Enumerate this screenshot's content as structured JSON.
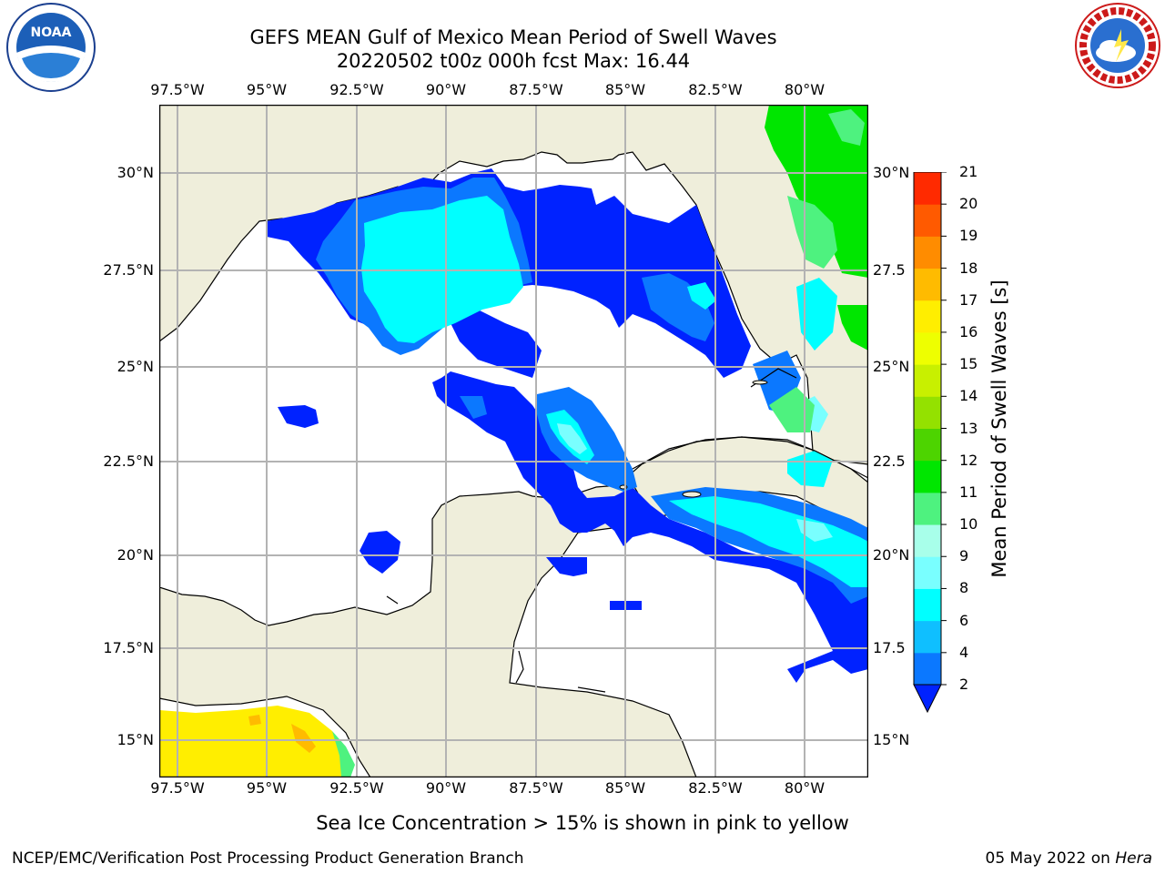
{
  "header": {
    "title_line1": "GEFS MEAN Gulf of Mexico Mean Period of Swell Waves",
    "title_line2": "20220502 t00z 000h fcst   Max: 16.44"
  },
  "logos": {
    "left": "noaa-logo",
    "right": "nws-logo"
  },
  "axes": {
    "lon_labels": [
      "97.5°W",
      "95°W",
      "92.5°W",
      "90°W",
      "87.5°W",
      "85°W",
      "82.5°W",
      "80°W"
    ],
    "lat_labels_left": [
      "30°N",
      "27.5°N",
      "25°N",
      "22.5°N",
      "20°N",
      "17.5°N",
      "15°N"
    ],
    "lat_labels_right": [
      "30°N",
      "27.5",
      "25°N",
      "22.5",
      "20°N",
      "17.5",
      "15°N"
    ]
  },
  "colorbar": {
    "title": "Mean Period of Swell Waves [s]",
    "ticks": [
      "2",
      "4",
      "6",
      "8",
      "9",
      "10",
      "11",
      "12",
      "13",
      "14",
      "15",
      "16",
      "17",
      "18",
      "19",
      "20",
      "21"
    ],
    "colors": [
      "#0b78ff",
      "#0fbfff",
      "#00ffff",
      "#79ffff",
      "#a8ffea",
      "#4ef27f",
      "#00e600",
      "#4dd400",
      "#94e100",
      "#c8f000",
      "#eeff00",
      "#ffee00",
      "#ffbb00",
      "#ff8c00",
      "#ff5a00",
      "#ff2a00",
      "#ff0000"
    ],
    "extend_color": "#0022ff"
  },
  "map_colors": {
    "land": "#efeedb",
    "ocean": "#ffffff",
    "grid": "#b3b3b3",
    "coast": "#000000"
  },
  "footer": {
    "note": "Sea Ice Concentration > 15% is shown in pink to yellow",
    "credit_left": "NCEP/EMC/Verification Post Processing Product Generation Branch",
    "credit_date": "05 May 2022 on ",
    "credit_host": "Hera"
  }
}
